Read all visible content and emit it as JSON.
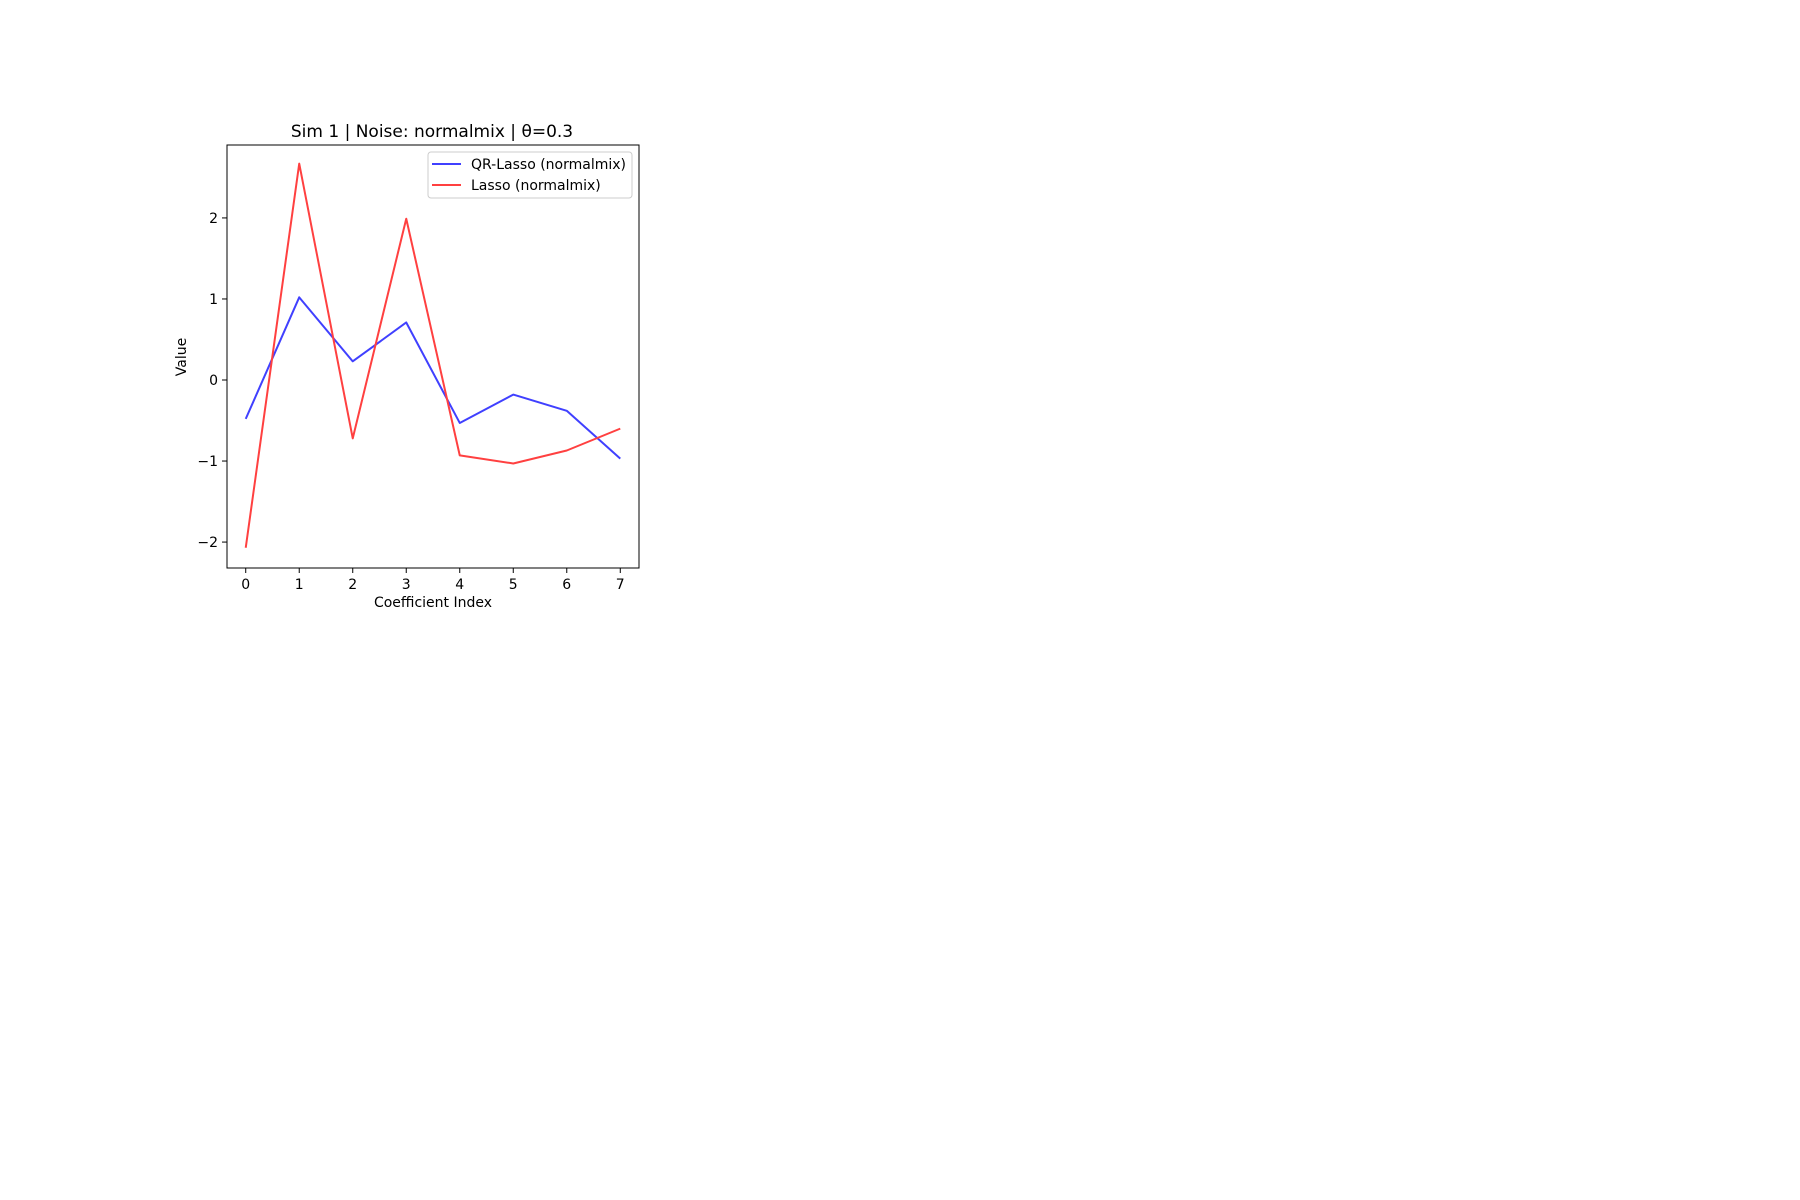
{
  "chart_data": {
    "type": "line",
    "title": "Sim 1 | Noise: normalmix | θ=0.3",
    "xlabel": "Coefficient Index",
    "ylabel": "Value",
    "x": [
      0,
      1,
      2,
      3,
      4,
      5,
      6,
      7
    ],
    "xlim": [
      -0.35,
      7.35
    ],
    "ylim": [
      -2.32,
      2.9
    ],
    "xticks": [
      0,
      1,
      2,
      3,
      4,
      5,
      6,
      7
    ],
    "yticks": [
      -2,
      -1,
      0,
      1,
      2
    ],
    "ytick_labels": [
      "−2",
      "−1",
      "0",
      "1",
      "2"
    ],
    "grid": false,
    "legend_position": "top-right",
    "series": [
      {
        "name": "QR-Lasso (normalmix)",
        "color": "#4040ff",
        "values": [
          -0.48,
          1.02,
          0.23,
          0.71,
          -0.53,
          -0.18,
          -0.38,
          -0.97
        ]
      },
      {
        "name": "Lasso (normalmix)",
        "color": "#ff4040",
        "values": [
          -2.07,
          2.67,
          -0.72,
          1.99,
          -0.93,
          -1.03,
          -0.87,
          -0.6
        ]
      }
    ]
  }
}
